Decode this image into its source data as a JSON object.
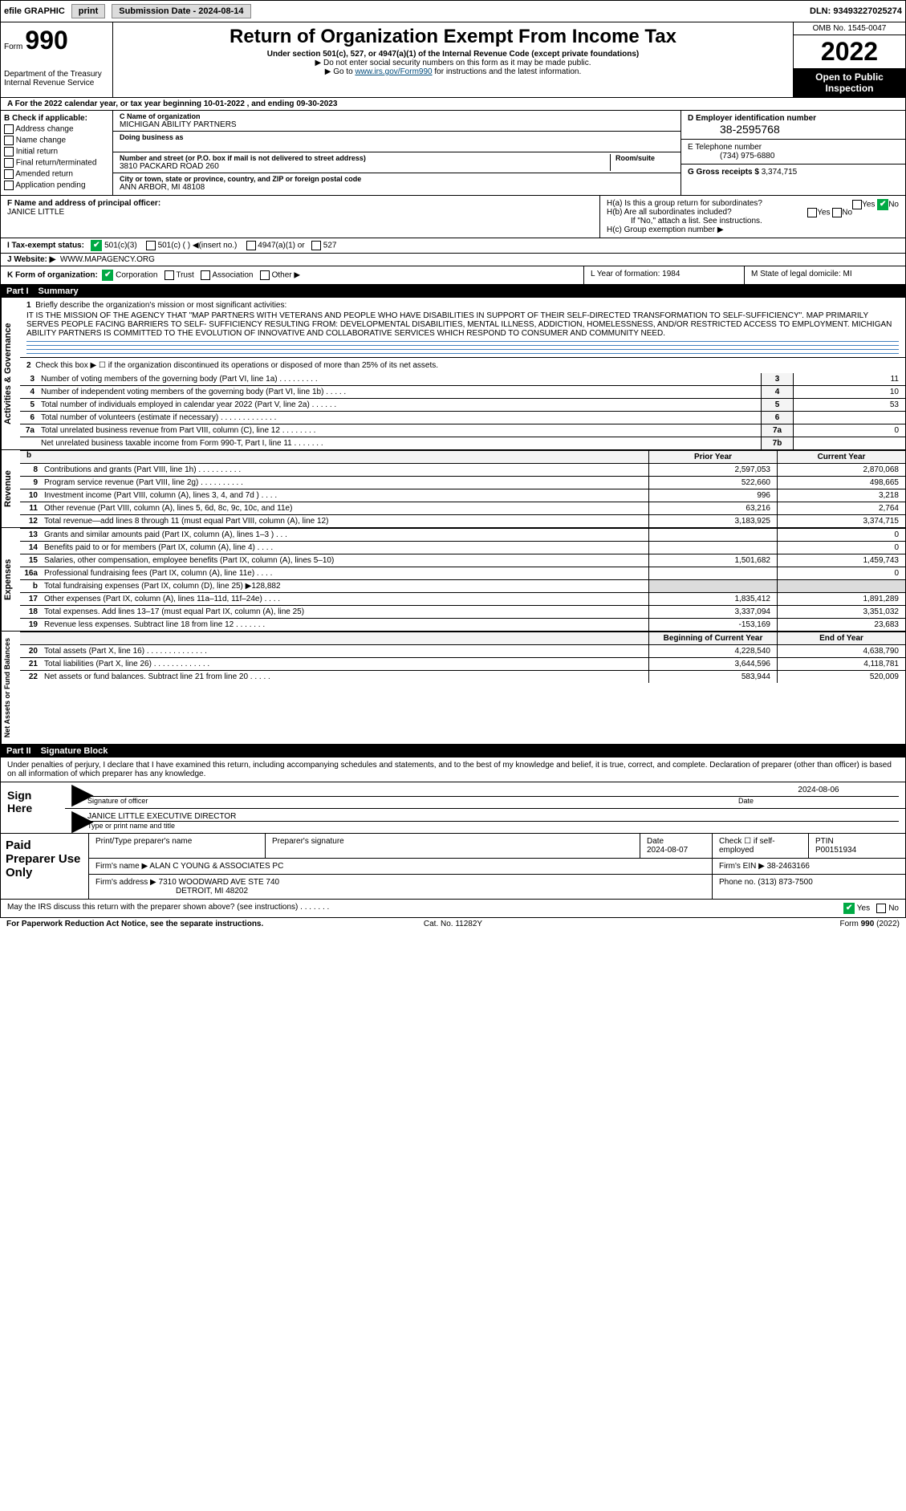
{
  "top": {
    "efile": "efile GRAPHIC",
    "print": "print",
    "submission": "Submission Date - 2024-08-14",
    "dln": "DLN: 93493227025274"
  },
  "header": {
    "form_label": "Form",
    "form_number": "990",
    "dept": "Department of the Treasury Internal Revenue Service",
    "title": "Return of Organization Exempt From Income Tax",
    "sub1": "Under section 501(c), 527, or 4947(a)(1) of the Internal Revenue Code (except private foundations)",
    "sub2": "▶ Do not enter social security numbers on this form as it may be made public.",
    "sub3_pre": "▶ Go to ",
    "sub3_link": "www.irs.gov/Form990",
    "sub3_post": " for instructions and the latest information.",
    "omb": "OMB No. 1545-0047",
    "year": "2022",
    "open_public": "Open to Public Inspection"
  },
  "A": {
    "text": "A  For the 2022 calendar year, or tax year beginning 10-01-2022    , and ending 09-30-2023"
  },
  "B": {
    "title": "B Check if applicable:",
    "items": [
      "Address change",
      "Name change",
      "Initial return",
      "Final return/terminated",
      "Amended return",
      "Application pending"
    ]
  },
  "C": {
    "name_label": "C Name of organization",
    "name": "MICHIGAN ABILITY PARTNERS",
    "dba_label": "Doing business as",
    "addr_label": "Number and street (or P.O. box if mail is not delivered to street address)",
    "room_label": "Room/suite",
    "addr": "3810 PACKARD ROAD 260",
    "city_label": "City or town, state or province, country, and ZIP or foreign postal code",
    "city": "ANN ARBOR, MI  48108"
  },
  "D": {
    "label": "D Employer identification number",
    "ein": "38-2595768"
  },
  "E": {
    "label": "E Telephone number",
    "phone": "(734) 975-6880"
  },
  "G": {
    "label": "G Gross receipts $",
    "amount": "3,374,715"
  },
  "F": {
    "label": "F  Name and address of principal officer:",
    "name": "JANICE LITTLE"
  },
  "H": {
    "a_label": "H(a)  Is this a group return for subordinates?",
    "a_yes": "Yes",
    "a_no": "No",
    "b_label": "H(b)  Are all subordinates included?",
    "b_yes": "Yes",
    "b_no": "No",
    "b_note": "If \"No,\" attach a list. See instructions.",
    "c_label": "H(c)  Group exemption number ▶"
  },
  "I": {
    "label": "I   Tax-exempt status:",
    "opt1": "501(c)(3)",
    "opt2": "501(c) (  )  ◀(insert no.)",
    "opt3": "4947(a)(1) or",
    "opt4": "527"
  },
  "J": {
    "label": "J   Website: ▶",
    "value": "WWW.MAPAGENCY.ORG"
  },
  "K": {
    "label": "K Form of organization:",
    "opts": [
      "Corporation",
      "Trust",
      "Association",
      "Other ▶"
    ]
  },
  "L": {
    "label": "L Year of formation: 1984"
  },
  "M": {
    "label": "M State of legal domicile: MI"
  },
  "part1": {
    "title": "Part I",
    "subtitle": "Summary",
    "tab1": "Activities & Governance",
    "tab2": "Revenue",
    "tab3": "Expenses",
    "tab4": "Net Assets or Fund Balances",
    "line1_label": "Briefly describe the organization's mission or most significant activities:",
    "mission": "IT IS THE MISSION OF THE AGENCY THAT \"MAP PARTNERS WITH VETERANS AND PEOPLE WHO HAVE DISABILITIES IN SUPPORT OF THEIR SELF-DIRECTED TRANSFORMATION TO SELF-SUFFICIENCY\". MAP PRIMARILY SERVES PEOPLE FACING BARRIERS TO SELF- SUFFICIENCY RESULTING FROM: DEVELOPMENTAL DISABILITIES, MENTAL ILLNESS, ADDICTION, HOMELESSNESS, AND/OR RESTRICTED ACCESS TO EMPLOYMENT. MICHIGAN ABILITY PARTNERS IS COMMITTED TO THE EVOLUTION OF INNOVATIVE AND COLLABORATIVE SERVICES WHICH RESPOND TO CONSUMER AND COMMUNITY NEED.",
    "line2": "Check this box ▶ ☐ if the organization discontinued its operations or disposed of more than 25% of its net assets.",
    "rows_gov": [
      {
        "n": "3",
        "t": "Number of voting members of the governing body (Part VI, line 1a)  .   .   .   .   .   .   .   .   .",
        "bn": "3",
        "v": "11"
      },
      {
        "n": "4",
        "t": "Number of independent voting members of the governing body (Part VI, line 1b)  .   .   .   .   .",
        "bn": "4",
        "v": "10"
      },
      {
        "n": "5",
        "t": "Total number of individuals employed in calendar year 2022 (Part V, line 2a)  .   .   .   .   .   .",
        "bn": "5",
        "v": "53"
      },
      {
        "n": "6",
        "t": "Total number of volunteers (estimate if necessary)  .   .   .   .   .   .   .   .   .   .   .   .   .",
        "bn": "6",
        "v": ""
      },
      {
        "n": "7a",
        "t": "Total unrelated business revenue from Part VIII, column (C), line 12  .   .   .   .   .   .   .   .",
        "bn": "7a",
        "v": "0"
      },
      {
        "n": "",
        "t": "Net unrelated business taxable income from Form 990-T, Part I, line 11  .   .   .   .   .   .   .",
        "bn": "7b",
        "v": ""
      }
    ],
    "fin_header": {
      "c1": "Prior Year",
      "c2": "Current Year"
    },
    "rows_rev": [
      {
        "n": "8",
        "t": "Contributions and grants (Part VIII, line 1h)  .   .   .   .   .   .   .   .   .   .",
        "c1": "2,597,053",
        "c2": "2,870,068"
      },
      {
        "n": "9",
        "t": "Program service revenue (Part VIII, line 2g)  .   .   .   .   .   .   .   .   .   .",
        "c1": "522,660",
        "c2": "498,665"
      },
      {
        "n": "10",
        "t": "Investment income (Part VIII, column (A), lines 3, 4, and 7d )  .   .   .   .",
        "c1": "996",
        "c2": "3,218"
      },
      {
        "n": "11",
        "t": "Other revenue (Part VIII, column (A), lines 5, 6d, 8c, 9c, 10c, and 11e)",
        "c1": "63,216",
        "c2": "2,764"
      },
      {
        "n": "12",
        "t": "Total revenue—add lines 8 through 11 (must equal Part VIII, column (A), line 12)",
        "c1": "3,183,925",
        "c2": "3,374,715"
      }
    ],
    "rows_exp": [
      {
        "n": "13",
        "t": "Grants and similar amounts paid (Part IX, column (A), lines 1–3 )  .   .   .",
        "c1": "",
        "c2": "0"
      },
      {
        "n": "14",
        "t": "Benefits paid to or for members (Part IX, column (A), line 4)  .   .   .   .",
        "c1": "",
        "c2": "0"
      },
      {
        "n": "15",
        "t": "Salaries, other compensation, employee benefits (Part IX, column (A), lines 5–10)",
        "c1": "1,501,682",
        "c2": "1,459,743"
      },
      {
        "n": "16a",
        "t": "Professional fundraising fees (Part IX, column (A), line 11e)  .   .   .   .",
        "c1": "",
        "c2": "0"
      },
      {
        "n": "b",
        "t": "Total fundraising expenses (Part IX, column (D), line 25) ▶128,882",
        "c1": "SHADED",
        "c2": "SHADED"
      },
      {
        "n": "17",
        "t": "Other expenses (Part IX, column (A), lines 11a–11d, 11f–24e)  .   .   .   .",
        "c1": "1,835,412",
        "c2": "1,891,289"
      },
      {
        "n": "18",
        "t": "Total expenses. Add lines 13–17 (must equal Part IX, column (A), line 25)",
        "c1": "3,337,094",
        "c2": "3,351,032"
      },
      {
        "n": "19",
        "t": "Revenue less expenses. Subtract line 18 from line 12  .   .   .   .   .   .   .",
        "c1": "-153,169",
        "c2": "23,683"
      }
    ],
    "net_header": {
      "c1": "Beginning of Current Year",
      "c2": "End of Year"
    },
    "rows_net": [
      {
        "n": "20",
        "t": "Total assets (Part X, line 16)  .   .   .   .   .   .   .   .   .   .   .   .   .   .",
        "c1": "4,228,540",
        "c2": "4,638,790"
      },
      {
        "n": "21",
        "t": "Total liabilities (Part X, line 26)  .   .   .   .   .   .   .   .   .   .   .   .   .",
        "c1": "3,644,596",
        "c2": "4,118,781"
      },
      {
        "n": "22",
        "t": "Net assets or fund balances. Subtract line 21 from line 20  .   .   .   .   .",
        "c1": "583,944",
        "c2": "520,009"
      }
    ]
  },
  "part2": {
    "title": "Part II",
    "subtitle": "Signature Block",
    "declaration": "Under penalties of perjury, I declare that I have examined this return, including accompanying schedules and statements, and to the best of my knowledge and belief, it is true, correct, and complete. Declaration of preparer (other than officer) is based on all information of which preparer has any knowledge.",
    "sign_here": "Sign Here",
    "sig_officer": "Signature of officer",
    "sig_date": "2024-08-06",
    "date_label": "Date",
    "officer_name": "JANICE LITTLE  EXECUTIVE DIRECTOR",
    "officer_sub": "Type or print name and title"
  },
  "preparer": {
    "title": "Paid Preparer Use Only",
    "h1": "Print/Type preparer's name",
    "h2": "Preparer's signature",
    "h3": "Date",
    "date": "2024-08-07",
    "h4": "Check ☐ if self-employed",
    "h5": "PTIN",
    "ptin": "P00151934",
    "firm_label": "Firm's name     ▶",
    "firm_name": "ALAN C YOUNG & ASSOCIATES PC",
    "firm_ein_label": "Firm's EIN ▶",
    "firm_ein": "38-2463166",
    "firm_addr_label": "Firm's address ▶",
    "firm_addr": "7310 WOODWARD AVE STE 740",
    "firm_city": "DETROIT, MI  48202",
    "phone_label": "Phone no.",
    "phone": "(313) 873-7500"
  },
  "footer": {
    "discuss": "May the IRS discuss this return with the preparer shown above? (see instructions)  .   .   .   .   .   .   .",
    "yes": "Yes",
    "no": "No",
    "paperwork": "For Paperwork Reduction Act Notice, see the separate instructions.",
    "cat": "Cat. No. 11282Y",
    "form": "Form 990 (2022)"
  },
  "colors": {
    "check_green": "#00aa44",
    "link": "#004b7a",
    "blueline": "#4080c0",
    "shaded": "#dcdcdc"
  }
}
